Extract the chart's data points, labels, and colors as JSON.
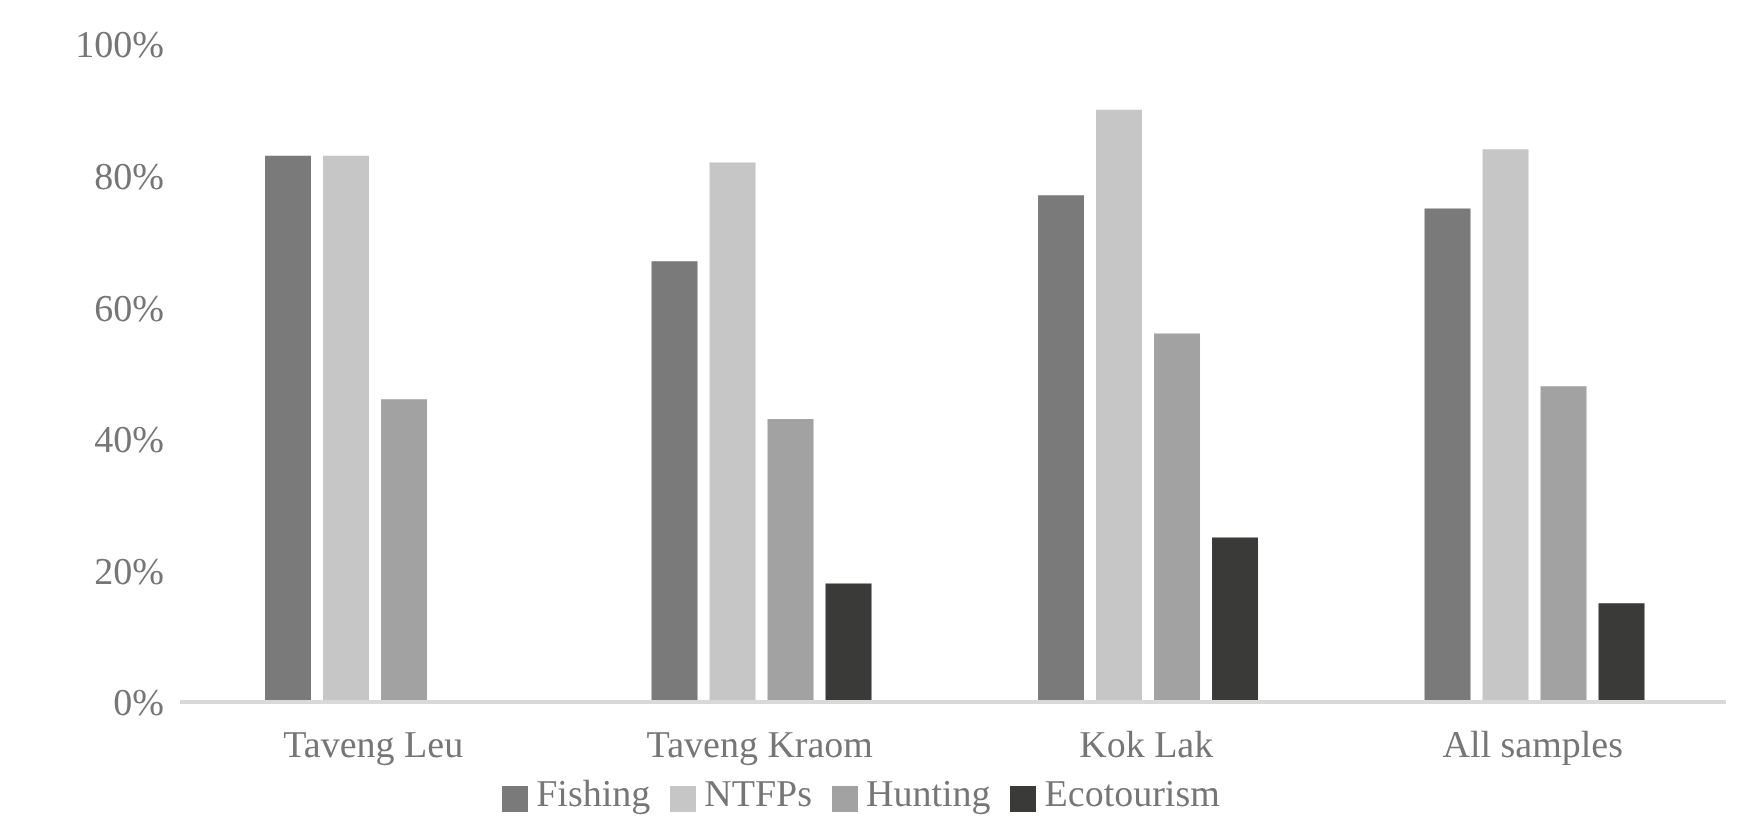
{
  "chart_data": {
    "type": "bar",
    "categories": [
      "Taveng Leu",
      "Taveng Kraom",
      "Kok Lak",
      "All samples"
    ],
    "series": [
      {
        "name": "Fishing",
        "color": "#7a7a7a",
        "values": [
          83,
          67,
          77,
          75
        ]
      },
      {
        "name": "NTFPs",
        "color": "#c5c6c5",
        "values": [
          83,
          82,
          90,
          84
        ]
      },
      {
        "name": "Hunting",
        "color": "#a2a2a2",
        "values": [
          46,
          43,
          56,
          48
        ]
      },
      {
        "name": "Ecotourism",
        "color": "#3a3a39",
        "values": [
          0,
          18,
          25,
          15
        ]
      }
    ],
    "ylim": [
      0,
      100
    ],
    "yticks": [
      {
        "value": 0,
        "label": "0%"
      },
      {
        "value": 20,
        "label": "20%"
      },
      {
        "value": 40,
        "label": "40%"
      },
      {
        "value": 60,
        "label": "60%"
      },
      {
        "value": 80,
        "label": "80%"
      },
      {
        "value": 100,
        "label": "100%"
      }
    ],
    "grid": false,
    "legend": "bottom"
  }
}
